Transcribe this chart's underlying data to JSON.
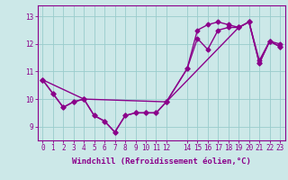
{
  "xlabel": "Windchill (Refroidissement éolien,°C)",
  "background_color": "#cce8e8",
  "line_color": "#8b008b",
  "grid_color": "#99cccc",
  "xlim": [
    -0.5,
    23.5
  ],
  "ylim": [
    8.5,
    13.4
  ],
  "yticks": [
    9,
    10,
    11,
    12,
    13
  ],
  "xticks": [
    0,
    1,
    2,
    3,
    4,
    5,
    6,
    7,
    8,
    9,
    10,
    11,
    12,
    14,
    15,
    16,
    17,
    18,
    19,
    20,
    21,
    22,
    23
  ],
  "series1_x": [
    0,
    1,
    2,
    3,
    4,
    5,
    6,
    7,
    8,
    9,
    10,
    11,
    12,
    14,
    15,
    16,
    17,
    18,
    19,
    20,
    21,
    22,
    23
  ],
  "series1_y": [
    10.7,
    10.2,
    9.7,
    9.9,
    10.0,
    9.4,
    9.2,
    8.8,
    9.4,
    9.5,
    9.5,
    9.5,
    9.9,
    11.1,
    12.2,
    11.8,
    12.5,
    12.6,
    12.6,
    12.8,
    11.4,
    12.1,
    11.9
  ],
  "series2_x": [
    0,
    1,
    2,
    3,
    4,
    5,
    6,
    7,
    8,
    9,
    10,
    11,
    12,
    14,
    15,
    16,
    17,
    18,
    19,
    20,
    21,
    22,
    23
  ],
  "series2_y": [
    10.7,
    10.2,
    9.7,
    9.9,
    10.0,
    9.4,
    9.2,
    8.8,
    9.4,
    9.5,
    9.5,
    9.5,
    9.9,
    11.1,
    12.5,
    12.7,
    12.8,
    12.7,
    12.6,
    12.8,
    11.3,
    12.1,
    12.0
  ],
  "series3_x": [
    0,
    4,
    12,
    19,
    20,
    21,
    22,
    23
  ],
  "series3_y": [
    10.7,
    10.0,
    9.9,
    12.6,
    12.8,
    11.3,
    12.1,
    11.9
  ],
  "marker": "D",
  "marker_size": 2.5,
  "line_width": 1.0,
  "tick_fontsize": 5.5,
  "label_fontsize": 6.5
}
